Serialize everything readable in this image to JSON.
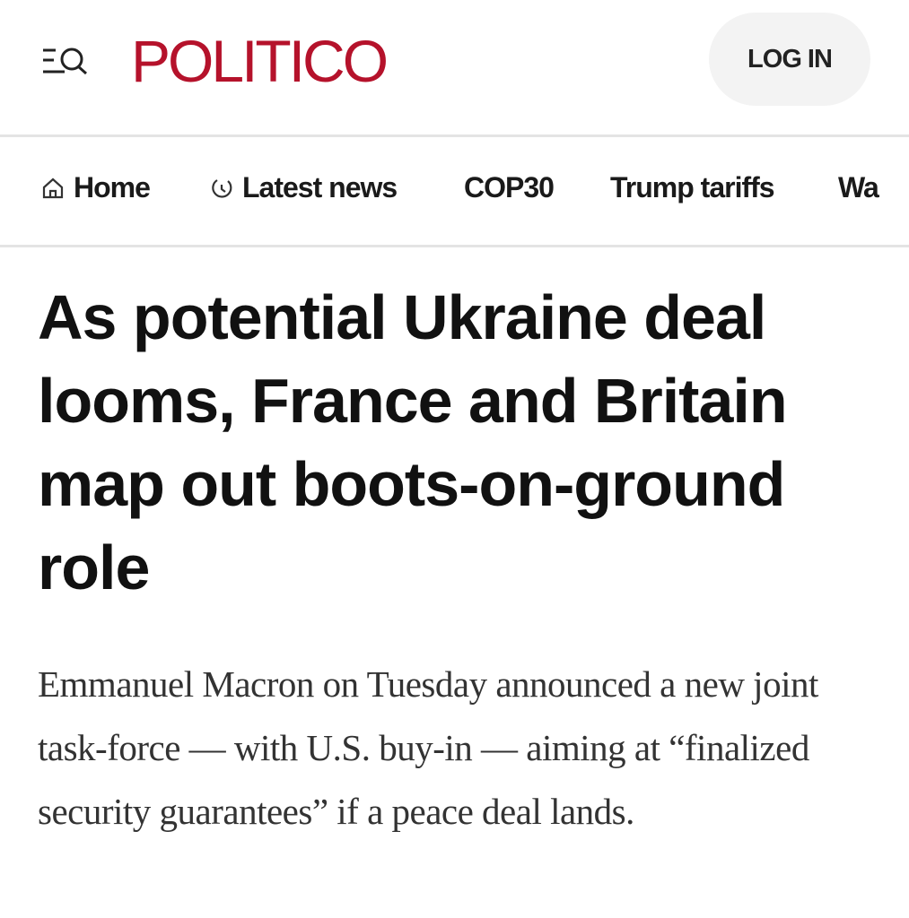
{
  "header": {
    "logo": "POLITICO",
    "login_label": "LOG IN",
    "brand_color": "#b5122b",
    "menu_icon": "menu-search-icon"
  },
  "nav": {
    "items": [
      {
        "label": "Home",
        "icon": "home-icon"
      },
      {
        "label": "Latest news",
        "icon": "clock-icon"
      },
      {
        "label": "COP30"
      },
      {
        "label": "Trump tariffs"
      },
      {
        "label": "Wa"
      }
    ]
  },
  "article": {
    "headline": "As potential Ukraine deal looms, France and Britain map out boots-on-ground role",
    "dek": "Emmanuel Macron on Tuesday announced a new joint task-force — with U.S. buy-in — aiming at “finalized security guarantees” if a peace deal lands."
  }
}
